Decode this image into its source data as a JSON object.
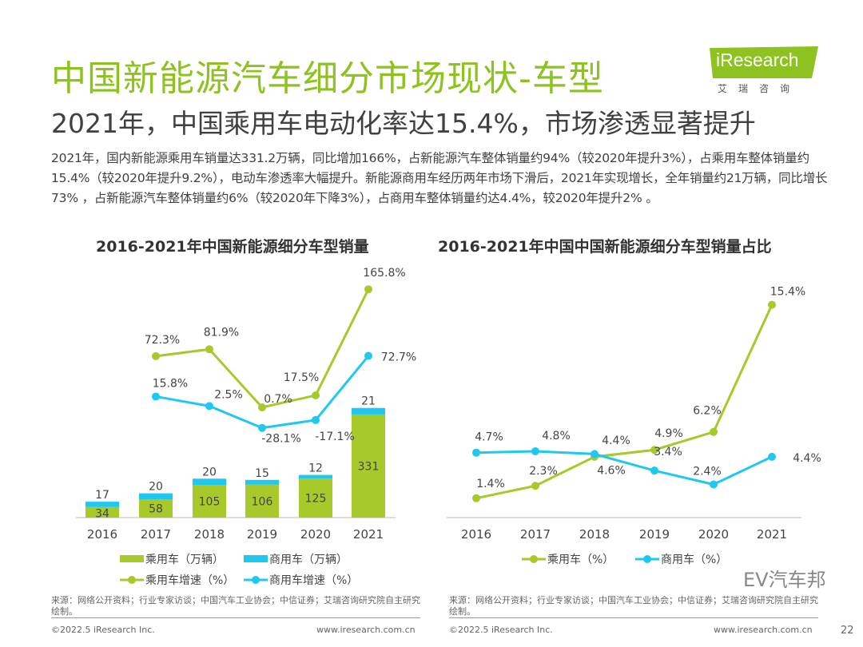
{
  "header": {
    "title": "中国新能源汽车细分市场现状-车型",
    "subtitle": "2021年，中国乘用车电动化率达15.4%，市场渗透显著提升",
    "body": "2021年，国内新能源乘用车销量达331.2万辆，同比增加166%，占新能源汽车整体销量约94%（较2020年提升3%），占乘用车整体销量约15.4%（较2020年提升9.2%），电动车渗透率大幅提升。新能源商用车经历两年市场下滑后，2021年实现增长，全年销量约21万辆，同比增长73% ，占新能源汽车整体销量约6%（较2020年下降3%），占商用车整体销量约达4.4%，较2020年提升2% 。"
  },
  "logo": {
    "text": "iResearch",
    "sub": "艾瑞咨询",
    "color": "#8dc21f"
  },
  "colors": {
    "green": "#a8c92a",
    "blue": "#1ec8ee",
    "title": "#8dc21f"
  },
  "chart_data": [
    {
      "type": "bar",
      "title": "2016-2021年中国新能源细分车型销量",
      "categories": [
        "2016",
        "2017",
        "2018",
        "2019",
        "2020",
        "2021"
      ],
      "stacked": true,
      "series": [
        {
          "name": "乘用车（万辆）",
          "kind": "bar",
          "values": [
            34,
            58,
            105,
            106,
            125,
            331
          ]
        },
        {
          "name": "商用车（万辆）",
          "kind": "bar",
          "values": [
            17,
            20,
            20,
            15,
            12,
            21
          ]
        },
        {
          "name": "乘用车增速（%）",
          "kind": "line",
          "values": [
            null,
            72.3,
            81.9,
            0.7,
            17.5,
            165.8
          ],
          "labels": [
            "",
            "72.3%",
            "81.9%",
            "0.7%",
            "17.5%",
            "165.8%"
          ]
        },
        {
          "name": "商用车增速（%）",
          "kind": "line",
          "values": [
            null,
            15.8,
            2.5,
            -28.1,
            -17.1,
            72.7
          ],
          "labels": [
            "",
            "15.8%",
            "2.5%",
            "-28.1%",
            "-17.1%",
            "72.7%"
          ]
        }
      ],
      "source": "来源：网络公开资料；行业专家访谈；中国汽车工业协会；中信证券；艾瑞咨询研究院自主研究绘制。"
    },
    {
      "type": "line",
      "title": "2016-2021年中国中国新能源细分车型销量占比",
      "categories": [
        "2016",
        "2017",
        "2018",
        "2019",
        "2020",
        "2021"
      ],
      "series": [
        {
          "name": "乘用车（%）",
          "values": [
            1.4,
            2.3,
            4.4,
            4.9,
            6.2,
            15.4
          ],
          "labels": [
            "1.4%",
            "2.3%",
            "4.4%",
            "4.9%",
            "6.2%",
            "15.4%"
          ]
        },
        {
          "name": "商用车（%）",
          "values": [
            4.7,
            4.8,
            4.6,
            3.4,
            2.4,
            4.4
          ],
          "labels": [
            "4.7%",
            "4.8%",
            "4.6%",
            "3.4%",
            "2.4%",
            "4.4%"
          ]
        }
      ],
      "source": "来源：网络公开资料；行业专家访谈；中国汽车工业协会；中信证券；艾瑞咨询研究院自主研究绘制。"
    }
  ],
  "footer": {
    "copyright": "©2022.5 iResearch Inc.",
    "url": "www.iresearch.com.cn",
    "page": "22",
    "watermark": "EV汽车邦"
  }
}
